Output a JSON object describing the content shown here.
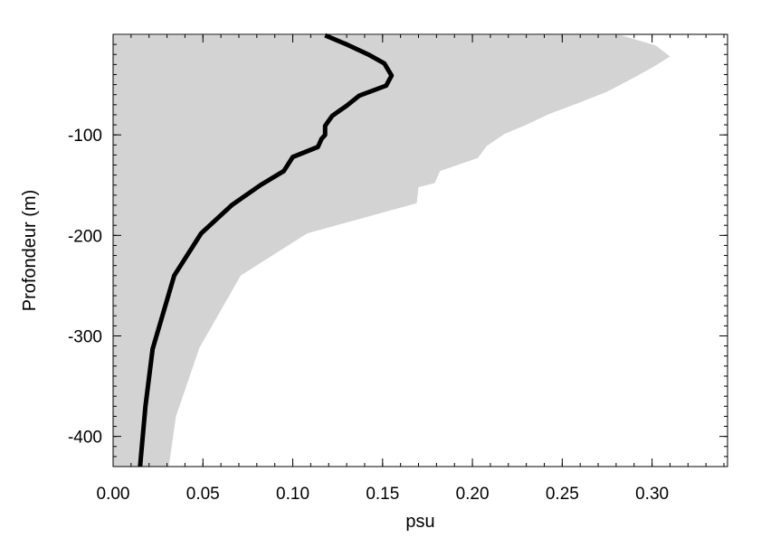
{
  "chart_data": {
    "type": "line",
    "title": "",
    "xlabel": "psu",
    "ylabel": "Profondeur (m)",
    "xlim": [
      0,
      0.342
    ],
    "ylim": [
      -430,
      0
    ],
    "x_ticks": [
      0.0,
      0.05,
      0.1,
      0.15,
      0.2,
      0.25,
      0.3
    ],
    "x_tick_labels": [
      "0.00",
      "0.05",
      "0.10",
      "0.15",
      "0.20",
      "0.25",
      "0.30"
    ],
    "y_ticks": [
      -100,
      -200,
      -300,
      -400
    ],
    "y_tick_labels": [
      "-100",
      "-200",
      "-300",
      "-400"
    ],
    "grid": false,
    "series": [
      {
        "kind": "band",
        "color": "#d3d3d3",
        "lower": {
          "x": [
            0.0,
            0.0
          ],
          "y": [
            -1,
            -430
          ]
        },
        "upper": {
          "x": [
            0.283,
            0.302,
            0.31,
            0.301,
            0.29,
            0.275,
            0.258,
            0.243,
            0.23,
            0.218,
            0.208,
            0.203,
            0.182,
            0.179,
            0.17,
            0.169,
            0.108,
            0.071,
            0.048,
            0.035,
            0.031
          ],
          "y": [
            -1,
            -11,
            -22,
            -32,
            -43,
            -57,
            -69,
            -79,
            -90,
            -99,
            -111,
            -123,
            -136,
            -148,
            -152,
            -168,
            -198,
            -240,
            -312,
            -380,
            -430
          ]
        }
      },
      {
        "kind": "line",
        "color": "#000000",
        "x": [
          0.118,
          0.13,
          0.142,
          0.151,
          0.155,
          0.152,
          0.137,
          0.13,
          0.122,
          0.118,
          0.118,
          0.116,
          0.114,
          0.1,
          0.095,
          0.082,
          0.066,
          0.049,
          0.034,
          0.022,
          0.018,
          0.015
        ],
        "y": [
          -1,
          -10,
          -20,
          -29,
          -41,
          -51,
          -61,
          -71,
          -81,
          -91,
          -100,
          -104,
          -112,
          -122,
          -136,
          -150,
          -170,
          -198,
          -240,
          -313,
          -370,
          -430
        ]
      }
    ]
  }
}
